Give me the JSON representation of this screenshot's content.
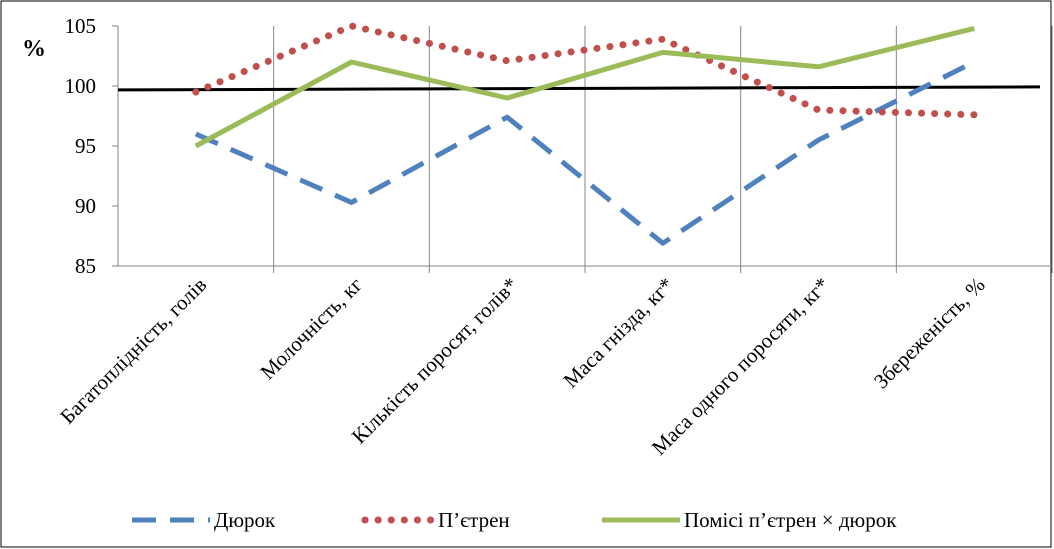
{
  "chart_data": {
    "type": "line",
    "unit_label": "%",
    "categories": [
      "Багатоплідність, голів",
      "Молочність, кг",
      "Кількість поросят, голів*",
      "Маса гнізда, кг*",
      "Маса одного поросяти, кг*",
      "Збереженість, %"
    ],
    "ylim": [
      85,
      105
    ],
    "yticks": [
      "85",
      "90",
      "95",
      "100",
      "105"
    ],
    "reference_line": 99.8,
    "series": [
      {
        "name": "Дюрок",
        "values": [
          96.0,
          90.3,
          97.4,
          86.9,
          95.5,
          102.0
        ],
        "color": "#4f81bd",
        "style": "dashed"
      },
      {
        "name": "П’єтрен",
        "values": [
          99.5,
          105.0,
          102.1,
          103.9,
          98.0,
          97.6
        ],
        "color": "#c0504d",
        "style": "dotted"
      },
      {
        "name": "Помісі п’єтрен × дюрок",
        "values": [
          95.0,
          102.0,
          99.0,
          102.8,
          101.6,
          104.8
        ],
        "color": "#9bbb59",
        "style": "solid"
      }
    ],
    "grid": "vertical",
    "legend_position": "bottom"
  }
}
